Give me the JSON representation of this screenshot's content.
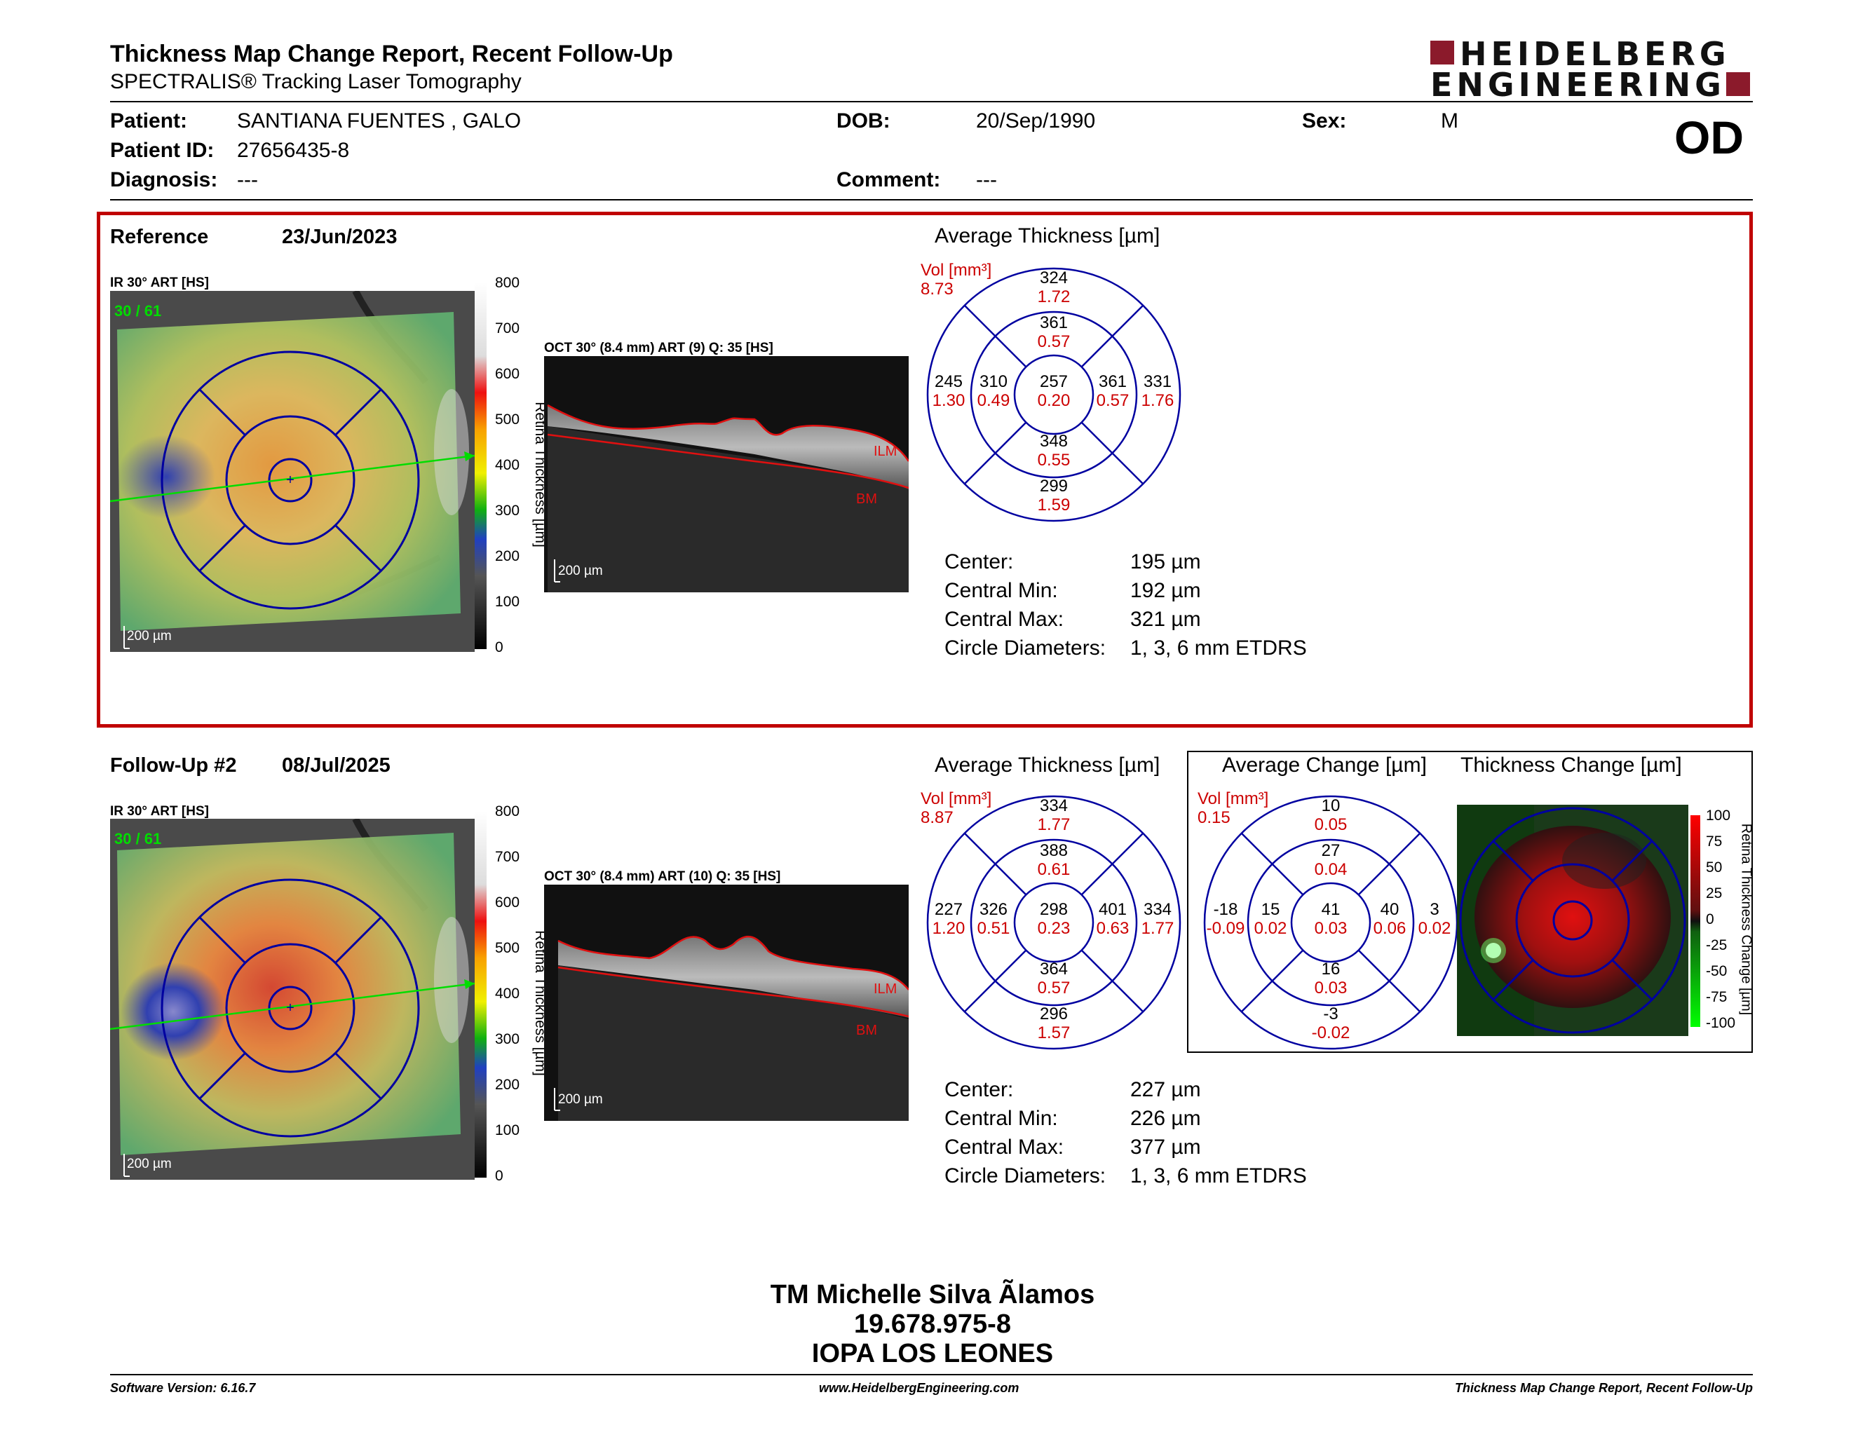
{
  "header": {
    "title": "Thickness Map Change Report, Recent Follow-Up",
    "subtitle": "SPECTRALIS® Tracking Laser Tomography",
    "logo_line1": "HEIDELBERG",
    "logo_line2": "ENGINEERING",
    "eye": "OD"
  },
  "patient": {
    "patient_label": "Patient:",
    "patient_value": "SANTIANA FUENTES , GALO",
    "dob_label": "DOB:",
    "dob_value": "20/Sep/1990",
    "sex_label": "Sex:",
    "sex_value": "M",
    "id_label": "Patient ID:",
    "id_value": "27656435-8",
    "diagnosis_label": "Diagnosis:",
    "diagnosis_value": "---",
    "comment_label": "Comment:",
    "comment_value": "---"
  },
  "reference": {
    "label": "Reference",
    "date": "23/Jun/2023",
    "ir_label": "IR 30° ART [HS]",
    "ir_counter": "30 / 61",
    "oct_label": "OCT 30° (8.4 mm) ART (9) Q: 35 [HS]",
    "avg_title": "Average Thickness [µm]",
    "vol_label": "Vol [mm³]",
    "vol_total": "8.73",
    "sectors": {
      "outer_top": [
        "324",
        "1.72"
      ],
      "inner_top": [
        "361",
        "0.57"
      ],
      "outer_left": [
        "245",
        "1.30"
      ],
      "inner_left": [
        "310",
        "0.49"
      ],
      "center": [
        "257",
        "0.20"
      ],
      "inner_right": [
        "361",
        "0.57"
      ],
      "outer_right": [
        "331",
        "1.76"
      ],
      "inner_bottom": [
        "348",
        "0.55"
      ],
      "outer_bottom": [
        "299",
        "1.59"
      ]
    },
    "stats": [
      {
        "label": "Center:",
        "value": "195 µm"
      },
      {
        "label": "Central Min:",
        "value": "192 µm"
      },
      {
        "label": "Central Max:",
        "value": "321 µm"
      },
      {
        "label": "Circle Diameters:",
        "value": "1, 3, 6 mm ETDRS"
      }
    ]
  },
  "followup": {
    "label": "Follow-Up #2",
    "date": "08/Jul/2025",
    "ir_label": "IR 30° ART [HS]",
    "ir_counter": "30 / 61",
    "oct_label": "OCT 30° (8.4 mm) ART (10) Q: 35 [HS]",
    "avg_title": "Average Thickness [µm]",
    "vol_label": "Vol [mm³]",
    "vol_total": "8.87",
    "sectors": {
      "outer_top": [
        "334",
        "1.77"
      ],
      "inner_top": [
        "388",
        "0.61"
      ],
      "outer_left": [
        "227",
        "1.20"
      ],
      "inner_left": [
        "326",
        "0.51"
      ],
      "center": [
        "298",
        "0.23"
      ],
      "inner_right": [
        "401",
        "0.63"
      ],
      "outer_right": [
        "334",
        "1.77"
      ],
      "inner_bottom": [
        "364",
        "0.57"
      ],
      "outer_bottom": [
        "296",
        "1.57"
      ]
    },
    "change_title": "Average Change [µm]",
    "change_vol_label": "Vol [mm³]",
    "change_vol_total": "0.15",
    "change_sectors": {
      "outer_top": [
        "10",
        "0.05"
      ],
      "inner_top": [
        "27",
        "0.04"
      ],
      "outer_left": [
        "-18",
        "-0.09"
      ],
      "inner_left": [
        "15",
        "0.02"
      ],
      "center": [
        "41",
        "0.03"
      ],
      "inner_right": [
        "40",
        "0.06"
      ],
      "outer_right": [
        "3",
        "0.02"
      ],
      "inner_bottom": [
        "16",
        "0.03"
      ],
      "outer_bottom": [
        "-3",
        "-0.02"
      ]
    },
    "thickness_change_title": "Thickness Change [µm]",
    "change_scale_title": "Retina Thickness Change [µm]",
    "change_scale": [
      "100",
      "75",
      "50",
      "25",
      "0",
      "-25",
      "-50",
      "-75",
      "-100"
    ],
    "stats": [
      {
        "label": "Center:",
        "value": "227 µm"
      },
      {
        "label": "Central Min:",
        "value": "226 µm"
      },
      {
        "label": "Central Max:",
        "value": "377 µm"
      },
      {
        "label": "Circle Diameters:",
        "value": "1, 3, 6 mm ETDRS"
      }
    ]
  },
  "common": {
    "scale_title": "Retina Thickness [µm]",
    "scale": [
      "800",
      "700",
      "600",
      "500",
      "400",
      "300",
      "200",
      "100",
      "0"
    ],
    "scalebar": "200 µm",
    "ilm": "ILM",
    "bm": "BM"
  },
  "signature": {
    "line1": "TM Michelle Silva Ãlamos",
    "line2": "19.678.975-8",
    "line3": "IOPA LOS LEONES"
  },
  "footer": {
    "left": "Software Version: 6.16.7",
    "center": "www.HeidelbergEngineering.com",
    "right": "Thickness Map Change Report, Recent Follow-Up"
  },
  "colors": {
    "frame": "#c00000",
    "etdrs": "#0000a0",
    "value_red": "#cc0000",
    "logo": "#8b1a2b"
  }
}
